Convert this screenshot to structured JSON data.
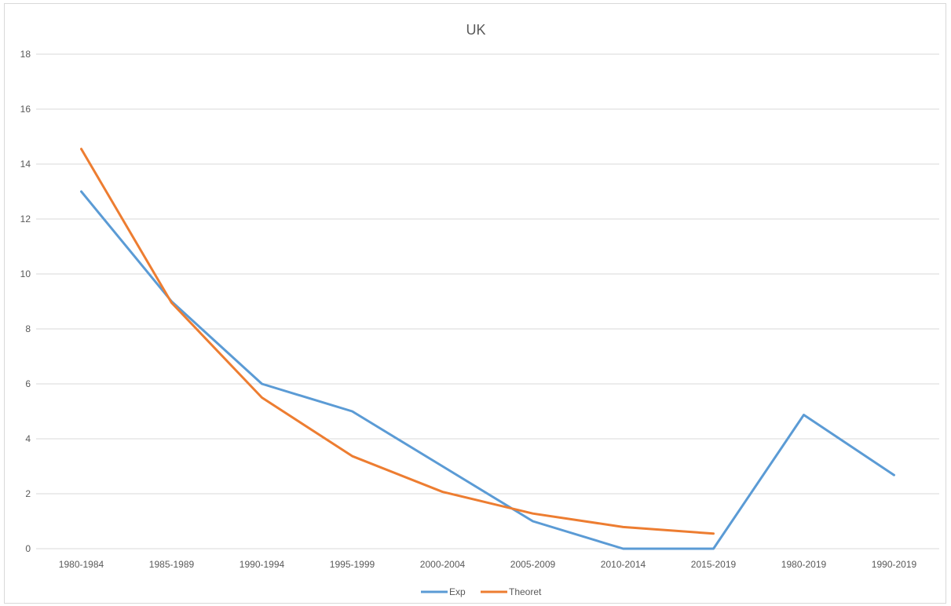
{
  "chart_data": {
    "type": "line",
    "title": "UK",
    "xlabel": "",
    "ylabel": "",
    "categories": [
      "1980-1984",
      "1985-1989",
      "1990-1994",
      "1995-1999",
      "2000-2004",
      "2005-2009",
      "2010-2014",
      "2015-2019",
      "1980-2019",
      "1990-2019"
    ],
    "ylim": [
      0,
      18
    ],
    "yticks": [
      0,
      2,
      4,
      6,
      8,
      10,
      12,
      14,
      16,
      18
    ],
    "grid": true,
    "legend_position": "bottom",
    "series": [
      {
        "name": "Exp",
        "color": "#5b9bd5",
        "values": [
          13,
          9,
          6,
          5,
          3,
          1,
          0,
          0,
          4.87,
          2.68
        ]
      },
      {
        "name": "Theoret",
        "color": "#ed7d31",
        "values": [
          14.55,
          8.95,
          5.5,
          3.37,
          2.07,
          1.28,
          0.79,
          0.55,
          null,
          null
        ]
      }
    ]
  }
}
